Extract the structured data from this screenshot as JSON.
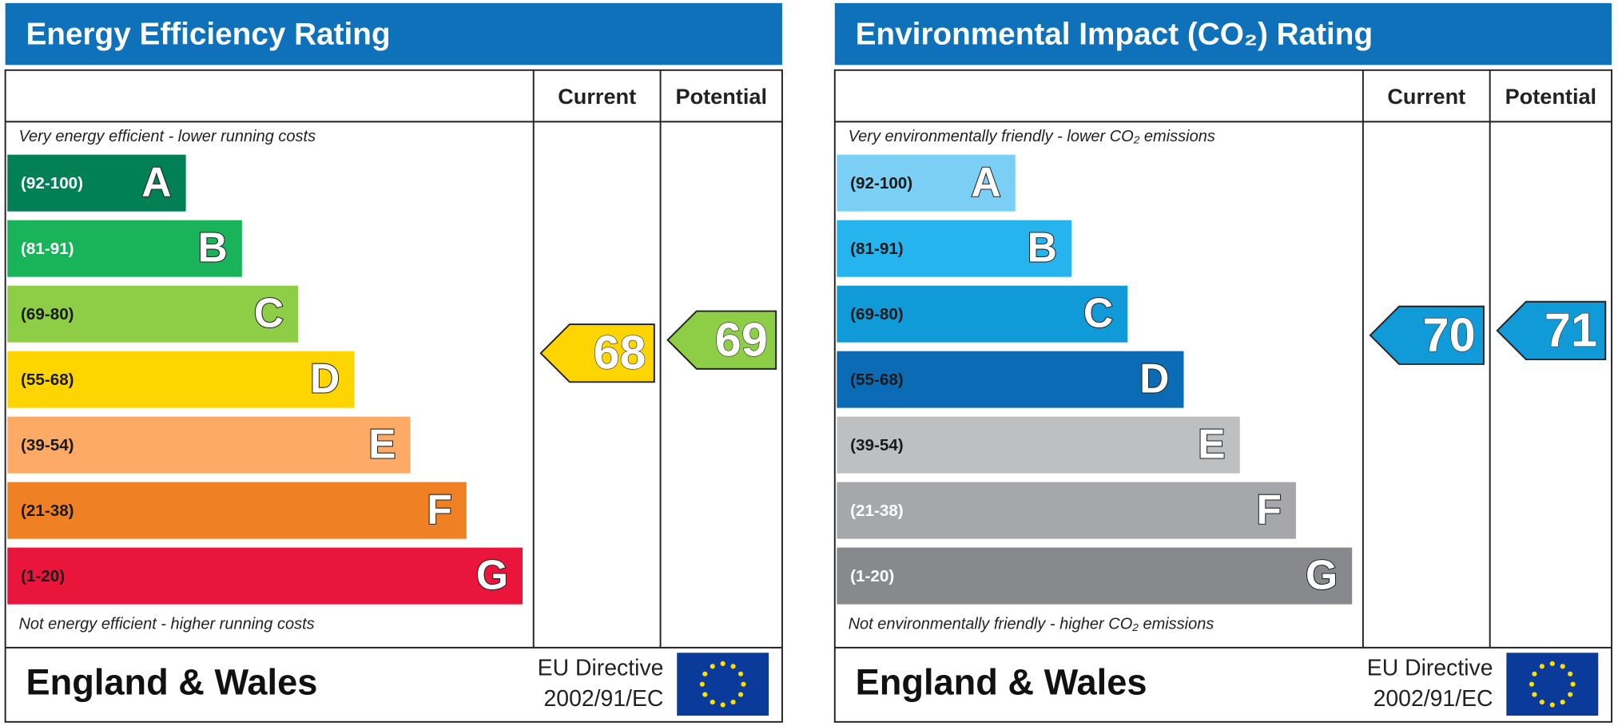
{
  "chart_data": [
    {
      "type": "rating",
      "title": "Energy Efficiency Rating",
      "current_label": "Current",
      "potential_label": "Potential",
      "top_note": "Very energy efficient - lower running costs",
      "bottom_note": "Not energy efficient - higher running costs",
      "bands": [
        {
          "range": {
            "min": 92,
            "max": 100,
            "label": "(92-100)"
          },
          "letter": "A",
          "color": "#008054",
          "text_color": "#ffffff"
        },
        {
          "range": {
            "min": 81,
            "max": 91,
            "label": "(81-91)"
          },
          "letter": "B",
          "color": "#19b459",
          "text_color": "#ffffff"
        },
        {
          "range": {
            "min": 69,
            "max": 80,
            "label": "(69-80)"
          },
          "letter": "C",
          "color": "#8dce46",
          "text_color": "#1a1a1a"
        },
        {
          "range": {
            "min": 55,
            "max": 68,
            "label": "(55-68)"
          },
          "letter": "D",
          "color": "#ffd500",
          "text_color": "#1a1a1a"
        },
        {
          "range": {
            "min": 39,
            "max": 54,
            "label": "(39-54)"
          },
          "letter": "E",
          "color": "#fcaa65",
          "text_color": "#1a1a1a"
        },
        {
          "range": {
            "min": 21,
            "max": 38,
            "label": "(21-38)"
          },
          "letter": "F",
          "color": "#ef8023",
          "text_color": "#1a1a1a"
        },
        {
          "range": {
            "min": 1,
            "max": 20,
            "label": "(1-20)"
          },
          "letter": "G",
          "color": "#e9153b",
          "text_color": "#1a1a1a"
        }
      ],
      "current": 68,
      "potential": 69,
      "region": "England & Wales",
      "directive": [
        "EU Directive",
        "2002/91/EC"
      ]
    },
    {
      "type": "rating",
      "title": "Environmental Impact (CO₂) Rating",
      "current_label": "Current",
      "potential_label": "Potential",
      "top_note": "Very environmentally friendly - lower CO₂ emissions",
      "bottom_note": "Not environmentally friendly - higher CO₂ emissions",
      "bands": [
        {
          "range": {
            "min": 92,
            "max": 100,
            "label": "(92-100)"
          },
          "letter": "A",
          "color": "#7ccff4",
          "text_color": "#1a1a1a"
        },
        {
          "range": {
            "min": 81,
            "max": 91,
            "label": "(81-91)"
          },
          "letter": "B",
          "color": "#25b4ee",
          "text_color": "#1a1a1a"
        },
        {
          "range": {
            "min": 69,
            "max": 80,
            "label": "(69-80)"
          },
          "letter": "C",
          "color": "#119ad8",
          "text_color": "#1a1a1a"
        },
        {
          "range": {
            "min": 55,
            "max": 68,
            "label": "(55-68)"
          },
          "letter": "D",
          "color": "#0b6bb5",
          "text_color": "#1a1a1a"
        },
        {
          "range": {
            "min": 39,
            "max": 54,
            "label": "(39-54)"
          },
          "letter": "E",
          "color": "#bdbfc1",
          "text_color": "#1a1a1a"
        },
        {
          "range": {
            "min": 21,
            "max": 38,
            "label": "(21-38)"
          },
          "letter": "F",
          "color": "#a5a7aa",
          "text_color": "#ffffff"
        },
        {
          "range": {
            "min": 1,
            "max": 20,
            "label": "(1-20)"
          },
          "letter": "G",
          "color": "#88898c",
          "text_color": "#ffffff"
        }
      ],
      "current": 70,
      "potential": 71,
      "region": "England & Wales",
      "directive": [
        "EU Directive",
        "2002/91/EC"
      ]
    }
  ]
}
